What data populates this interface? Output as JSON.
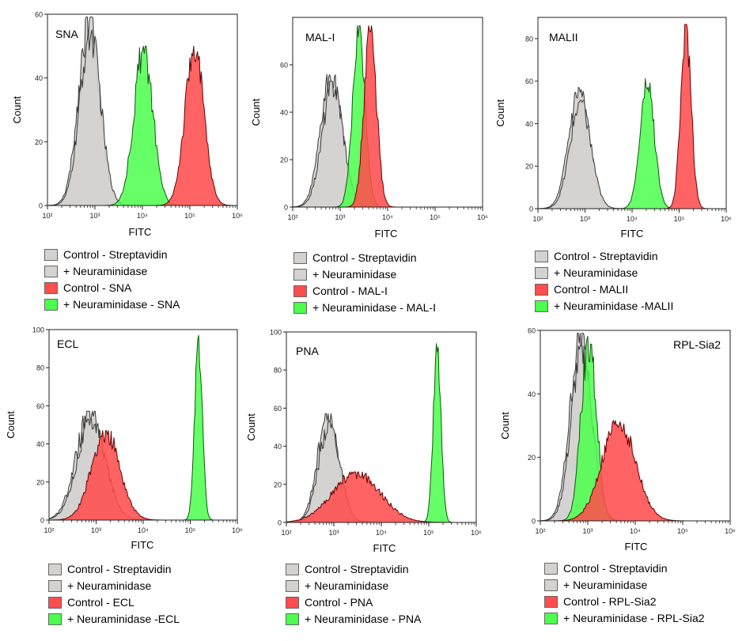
{
  "colors": {
    "gray": "#d4d2d0",
    "gray_line": "#3a3a3a",
    "red": "#ff4d4d",
    "red_line": "#6b0000",
    "green": "#4cff4c",
    "green_line": "#0a5a0a"
  },
  "chart_data": [
    {
      "type": "area",
      "panel": "SNA",
      "title": "SNA",
      "xlabel": "FITC",
      "ylabel": "Count",
      "x_scale": "log",
      "xlim": [
        100,
        1000000
      ],
      "ylim": [
        0,
        60
      ],
      "xticks": [
        "10²",
        "10³",
        "10⁴",
        "10⁵",
        "10⁶"
      ],
      "yticks": [
        "0",
        "20",
        "40",
        "60"
      ],
      "series": [
        {
          "name": "Control - Streptavidin",
          "color": "gray",
          "peak_x": 750,
          "peak_y": 58,
          "spread_decades": 0.22
        },
        {
          "name": "+ Neuraminidase",
          "color": "gray",
          "peak_x": 800,
          "peak_y": 54,
          "spread_decades": 0.22
        },
        {
          "name": "Control - SNA",
          "color": "red",
          "peak_x": 125000,
          "peak_y": 49,
          "spread_decades": 0.2
        },
        {
          "name": "+ Neuraminidase - SNA",
          "color": "green",
          "peak_x": 10500,
          "peak_y": 49,
          "spread_decades": 0.2
        }
      ]
    },
    {
      "type": "area",
      "panel": "MAL-I",
      "title": "MAL-I",
      "xlabel": "FITC",
      "ylabel": "Count",
      "x_scale": "log",
      "xlim": [
        100,
        1000000
      ],
      "ylim": [
        0,
        80
      ],
      "xticks": [
        "10²",
        "10³",
        "10⁴",
        "10⁵",
        "10⁶"
      ],
      "yticks": [
        "0",
        "20",
        "40",
        "60"
      ],
      "series": [
        {
          "name": "Control - Streptavidin",
          "color": "gray",
          "peak_x": 650,
          "peak_y": 56,
          "spread_decades": 0.22
        },
        {
          "name": "+ Neuraminidase",
          "color": "gray",
          "peak_x": 700,
          "peak_y": 52,
          "spread_decades": 0.22
        },
        {
          "name": "Control - MAL-I",
          "color": "red",
          "peak_x": 4300,
          "peak_y": 75,
          "spread_decades": 0.13
        },
        {
          "name": "+ Neuraminidase - MAL-I",
          "color": "green",
          "peak_x": 2500,
          "peak_y": 75,
          "spread_decades": 0.13
        }
      ]
    },
    {
      "type": "area",
      "panel": "MALII",
      "title": "MALII",
      "xlabel": "FITC",
      "ylabel": "Count",
      "x_scale": "log",
      "xlim": [
        100,
        1000000
      ],
      "ylim": [
        0,
        90
      ],
      "xticks": [
        "10²",
        "10³",
        "10⁴",
        "10⁵",
        "10⁶"
      ],
      "yticks": [
        "0",
        "20",
        "40",
        "60",
        "80"
      ],
      "series": [
        {
          "name": "Control - Streptavidin",
          "color": "gray",
          "peak_x": 750,
          "peak_y": 56,
          "spread_decades": 0.22
        },
        {
          "name": "+ Neuraminidase",
          "color": "gray",
          "peak_x": 800,
          "peak_y": 50,
          "spread_decades": 0.22
        },
        {
          "name": "Control - MALII",
          "color": "red",
          "peak_x": 140000,
          "peak_y": 85,
          "spread_decades": 0.11
        },
        {
          "name": "+ Neuraminidase -MALII",
          "color": "green",
          "peak_x": 21000,
          "peak_y": 60,
          "spread_decades": 0.15
        }
      ]
    },
    {
      "type": "area",
      "panel": "ECL",
      "title": "ECL",
      "xlabel": "FITC",
      "ylabel": "Count",
      "x_scale": "log",
      "xlim": [
        100,
        1000000
      ],
      "ylim": [
        0,
        100
      ],
      "xticks": [
        "10²",
        "10³",
        "10⁴",
        "10⁵",
        "10⁶"
      ],
      "yticks": [
        "0",
        "20",
        "40",
        "60",
        "80",
        "100"
      ],
      "series": [
        {
          "name": "Control - Streptavidin",
          "color": "gray",
          "peak_x": 750,
          "peak_y": 56,
          "spread_decades": 0.3
        },
        {
          "name": "+ Neuraminidase",
          "color": "gray",
          "peak_x": 800,
          "peak_y": 52,
          "spread_decades": 0.3
        },
        {
          "name": "Control - ECL",
          "color": "red",
          "peak_x": 1600,
          "peak_y": 46,
          "spread_decades": 0.3
        },
        {
          "name": "+ Neuraminidase -ECL",
          "color": "green",
          "peak_x": 150000,
          "peak_y": 95,
          "spread_decades": 0.08
        }
      ]
    },
    {
      "type": "area",
      "panel": "PNA",
      "title": "PNA",
      "xlabel": "FITC",
      "ylabel": "Count",
      "x_scale": "log",
      "xlim": [
        100,
        1000000
      ],
      "ylim": [
        0,
        100
      ],
      "xticks": [
        "10²",
        "10³",
        "10⁴",
        "10⁵",
        "10⁶"
      ],
      "yticks": [
        "0",
        "20",
        "40",
        "60",
        "80",
        "100"
      ],
      "series": [
        {
          "name": "Control - Streptavidin",
          "color": "gray",
          "peak_x": 750,
          "peak_y": 56,
          "spread_decades": 0.22
        },
        {
          "name": "+ Neuraminidase",
          "color": "gray",
          "peak_x": 800,
          "peak_y": 52,
          "spread_decades": 0.22
        },
        {
          "name": "Control - PNA",
          "color": "red",
          "peak_x": 3000,
          "peak_y": 26,
          "spread_decades": 0.5
        },
        {
          "name": "+ Neuraminidase - PNA",
          "color": "green",
          "peak_x": 150000,
          "peak_y": 92,
          "spread_decades": 0.08
        }
      ]
    },
    {
      "type": "area",
      "panel": "RPL-Sia2",
      "title": "RPL-Sia2",
      "xlabel": "FITC",
      "ylabel": "Count",
      "x_scale": "log",
      "xlim": [
        100,
        1000000
      ],
      "ylim": [
        0,
        60
      ],
      "xticks": [
        "10²",
        "10³",
        "10⁴",
        "10⁵",
        "10⁶"
      ],
      "yticks": [
        "0",
        "20",
        "40",
        "60"
      ],
      "series": [
        {
          "name": "Control - Streptavidin",
          "color": "gray",
          "peak_x": 700,
          "peak_y": 58,
          "spread_decades": 0.22
        },
        {
          "name": "+ Neuraminidase",
          "color": "gray",
          "peak_x": 750,
          "peak_y": 54,
          "spread_decades": 0.22
        },
        {
          "name": "Control - RPL-Sia2",
          "color": "red",
          "peak_x": 4500,
          "peak_y": 31,
          "spread_decades": 0.35
        },
        {
          "name": "+ Neuraminidase - RPL-Sia2",
          "color": "green",
          "peak_x": 1050,
          "peak_y": 57,
          "spread_decades": 0.16
        }
      ]
    }
  ]
}
